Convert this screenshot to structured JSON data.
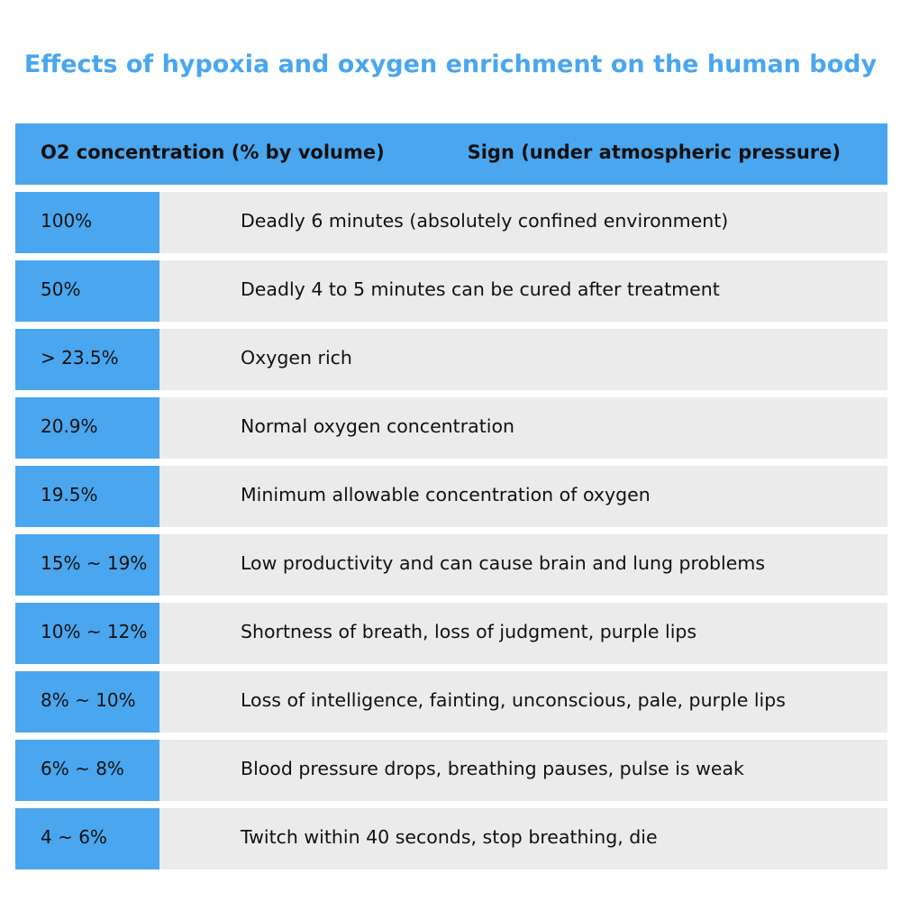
{
  "title": "Effects of hypoxia and oxygen enrichment on the human body",
  "header": {
    "col1": "O2 concentration (% by volume)",
    "col2": "Sign (under atmospheric pressure)"
  },
  "rows": [
    {
      "concentration": "100%",
      "sign": "Deadly 6 minutes (absolutely confined environment)"
    },
    {
      "concentration": "50%",
      "sign": "Deadly 4 to 5 minutes can be cured after treatment"
    },
    {
      "concentration": " > 23.5%",
      "sign": "Oxygen rich"
    },
    {
      "concentration": "20.9%",
      "sign": "Normal oxygen concentration"
    },
    {
      "concentration": "19.5%",
      "sign": "Minimum allowable concentration of oxygen"
    },
    {
      "concentration": "15% ~ 19%",
      "sign": "Low productivity and can cause brain and lung problems"
    },
    {
      "concentration": "10% ~ 12%",
      "sign": "Shortness of breath, loss of judgment, purple lips"
    },
    {
      "concentration": "8% ~ 10%",
      "sign": "Loss of intelligence, fainting, unconscious, pale, purple lips"
    },
    {
      "concentration": "6% ~ 8%",
      "sign": "Blood pressure drops, breathing pauses, pulse is weak"
    },
    {
      "concentration": "4 ~ 6%",
      "sign": "Twitch within 40 seconds, stop breathing, die"
    }
  ],
  "colors": {
    "accent": "#4aa6ee",
    "row_bg": "#ebebeb",
    "text": "#111111"
  }
}
